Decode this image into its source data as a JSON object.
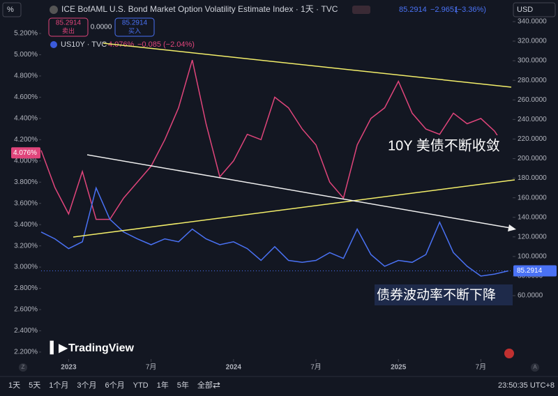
{
  "top": {
    "unit_button": "%",
    "currency": "USD"
  },
  "header": {
    "change": "−2.9651",
    "change_pct": "(−3.36%)",
    "sell_price": "85.2914",
    "sell_label": "卖出",
    "spread": "0.0000",
    "buy_price": "85.2914",
    "buy_label": "买入",
    "us10y_price": "4.076%",
    "us10y_change": "−0.085",
    "us10y_change_pct": "(−2.04%)"
  },
  "chart_data": {
    "type": "line",
    "x": [
      "2022-11",
      "2022-12",
      "2023-01",
      "2023-02",
      "2023-03",
      "2023-04",
      "2023-05",
      "2023-06",
      "2023-07",
      "2023-08",
      "2023-09",
      "2023-10",
      "2023-11",
      "2023-12",
      "2024-01",
      "2024-02",
      "2024-03",
      "2024-04",
      "2024-05",
      "2024-06",
      "2024-07",
      "2024-08",
      "2024-09",
      "2024-10",
      "2024-11",
      "2024-12",
      "2025-01",
      "2025-02",
      "2025-03",
      "2025-04",
      "2025-05",
      "2025-06",
      "2025-07",
      "2025-08",
      "2025-09"
    ],
    "series": [
      {
        "name": "US10Y · TVC",
        "color": "#e0457b",
        "axis": "y",
        "values": [
          4.1,
          3.75,
          3.5,
          3.9,
          3.45,
          3.45,
          3.65,
          3.8,
          3.95,
          4.2,
          4.5,
          4.95,
          4.35,
          3.85,
          4.0,
          4.25,
          4.2,
          4.6,
          4.5,
          4.3,
          4.15,
          3.8,
          3.65,
          4.15,
          4.4,
          4.5,
          4.75,
          4.45,
          4.3,
          4.25,
          4.45,
          4.35,
          4.4,
          4.28,
          4.076
        ]
      },
      {
        "name": "ICE BofAML U.S. Bond Market Option Volatility Estimate Index · 1天 · TVC",
        "color": "#4a72f5",
        "axis": "y2",
        "values": [
          125,
          118,
          108,
          115,
          170,
          138,
          125,
          118,
          112,
          118,
          115,
          128,
          118,
          112,
          115,
          108,
          96,
          110,
          96,
          94,
          96,
          104,
          98,
          128,
          102,
          90,
          96,
          94,
          102,
          135,
          104,
          90,
          80,
          82,
          85.2914
        ]
      }
    ],
    "ylim": [
      2.134,
      5.384
    ],
    "yticks": [
      {
        "value": 2.2,
        "label": "2.200%"
      },
      {
        "value": 2.4,
        "label": "2.400%"
      },
      {
        "value": 2.6,
        "label": "2.600%"
      },
      {
        "value": 2.8,
        "label": "2.800%"
      },
      {
        "value": 3.0,
        "label": "3.000%"
      },
      {
        "value": 3.2,
        "label": "3.200%"
      },
      {
        "value": 3.4,
        "label": "3.400%"
      },
      {
        "value": 3.6,
        "label": "3.600%"
      },
      {
        "value": 3.8,
        "label": "3.800%"
      },
      {
        "value": 4.0,
        "label": "4.000%"
      },
      {
        "value": 4.2,
        "label": "4.200%"
      },
      {
        "value": 4.4,
        "label": "4.400%"
      },
      {
        "value": 4.6,
        "label": "4.600%"
      },
      {
        "value": 4.8,
        "label": "4.800%"
      },
      {
        "value": 5.0,
        "label": "5.000%"
      },
      {
        "value": 5.2,
        "label": "5.200%"
      }
    ],
    "y2lim": [
      -4.8,
      347.8
    ],
    "y2ticks": [
      {
        "value": 60,
        "label": "60.0000"
      },
      {
        "value": 80,
        "label": "80.0000"
      },
      {
        "value": 100,
        "label": "100.0000"
      },
      {
        "value": 120,
        "label": "120.0000"
      },
      {
        "value": 140,
        "label": "140.0000"
      },
      {
        "value": 160,
        "label": "160.0000"
      },
      {
        "value": 180,
        "label": "180.0000"
      },
      {
        "value": 200,
        "label": "200.0000"
      },
      {
        "value": 220,
        "label": "220.0000"
      },
      {
        "value": 240,
        "label": "240.0000"
      },
      {
        "value": 260,
        "label": "260.0000"
      },
      {
        "value": 280,
        "label": "280.0000"
      },
      {
        "value": 300,
        "label": "300.0000"
      },
      {
        "value": 320,
        "label": "320.0000"
      },
      {
        "value": 340,
        "label": "340.0000"
      }
    ],
    "xticks": [
      {
        "value": "2023-01",
        "label": "2023"
      },
      {
        "value": "2023-07",
        "label": "7月"
      },
      {
        "value": "2024-01",
        "label": "2024"
      },
      {
        "value": "2024-07",
        "label": "7月"
      },
      {
        "value": "2025-01",
        "label": "2025"
      },
      {
        "value": "2025-07",
        "label": "7月"
      }
    ],
    "annotations": [
      "10Y 美债不断收敛",
      "债券波动率不断下降"
    ],
    "grid": false
  },
  "branding": "TradingView",
  "footer": {
    "ranges": [
      "1天",
      "5天",
      "1个月",
      "3个月",
      "6个月",
      "YTD",
      "1年",
      "5年",
      "全部"
    ],
    "time": "23:50:35 UTC+8",
    "left_button": "Z",
    "right_button": "A"
  }
}
